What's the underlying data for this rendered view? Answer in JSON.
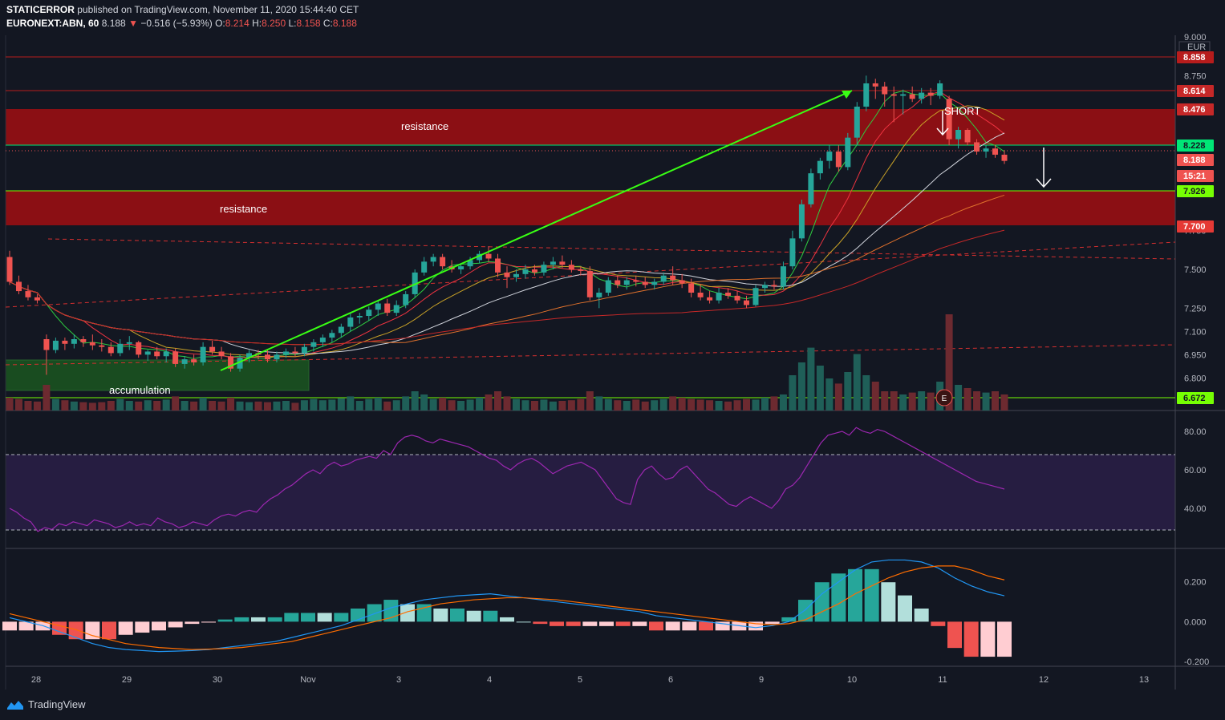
{
  "header": {
    "author": "STATICERROR",
    "published": "published on TradingView.com, November 11, 2020 15:44:40 CET",
    "symbol": "EURONEXT:ABN, 60",
    "last": "8.188",
    "change": "−0.516 (−5.93%)",
    "o_label": "O:",
    "o": "8.214",
    "h_label": "H:",
    "h": "8.250",
    "l_label": "L:",
    "l": "8.158",
    "c_label": "C:",
    "c": "8.188"
  },
  "footer": {
    "brand": "TradingView"
  },
  "colors": {
    "up": "#26a69a",
    "down": "#ef5350",
    "zone": "#8b0f14",
    "accum": "#1b5e20",
    "rsi_band": "#2a1e46"
  },
  "chart_data": [
    {
      "type": "candlestick",
      "pane": "price",
      "currency": "EUR",
      "y_ticks": [
        "9.000",
        "8.750",
        "7.750",
        "7.500",
        "7.250",
        "7.100",
        "6.950",
        "6.800"
      ],
      "x_ticks": [
        "28",
        "29",
        "30",
        "Nov",
        "3",
        "4",
        "5",
        "6",
        "9",
        "10",
        "11",
        "12",
        "13"
      ],
      "ylim": [
        6.6,
        9.0
      ],
      "ohlc": [
        [
          7.58,
          7.62,
          7.4,
          7.42
        ],
        [
          7.42,
          7.46,
          7.34,
          7.36
        ],
        [
          7.36,
          7.4,
          7.3,
          7.32
        ],
        [
          7.32,
          7.34,
          7.28,
          7.3
        ],
        [
          7.05,
          7.08,
          6.82,
          6.98
        ],
        [
          6.98,
          7.06,
          6.96,
          7.04
        ],
        [
          7.04,
          7.06,
          6.98,
          7.02
        ],
        [
          7.02,
          7.08,
          6.99,
          7.05
        ],
        [
          7.05,
          7.07,
          7.0,
          7.03
        ],
        [
          7.03,
          7.08,
          6.98,
          7.01
        ],
        [
          7.01,
          7.05,
          6.97,
          7.0
        ],
        [
          7.0,
          7.03,
          6.94,
          6.96
        ],
        [
          6.96,
          7.05,
          6.94,
          7.02
        ],
        [
          7.02,
          7.07,
          6.98,
          7.03
        ],
        [
          7.03,
          7.04,
          6.93,
          6.95
        ],
        [
          6.95,
          6.98,
          6.91,
          6.97
        ],
        [
          6.97,
          7.0,
          6.92,
          6.94
        ],
        [
          6.94,
          6.99,
          6.9,
          6.97
        ],
        [
          6.97,
          6.99,
          6.87,
          6.89
        ],
        [
          6.89,
          6.94,
          6.86,
          6.92
        ],
        [
          6.92,
          6.95,
          6.88,
          6.9
        ],
        [
          6.9,
          7.03,
          6.88,
          7.0
        ],
        [
          7.0,
          7.04,
          6.95,
          6.97
        ],
        [
          6.97,
          7.0,
          6.92,
          6.94
        ],
        [
          6.94,
          6.96,
          6.84,
          6.86
        ],
        [
          6.86,
          6.95,
          6.84,
          6.93
        ],
        [
          6.93,
          6.98,
          6.9,
          6.96
        ],
        [
          6.96,
          6.98,
          6.92,
          6.95
        ],
        [
          6.95,
          6.98,
          6.9,
          6.92
        ],
        [
          6.92,
          6.97,
          6.9,
          6.95
        ],
        [
          6.95,
          6.99,
          6.93,
          6.97
        ],
        [
          6.97,
          7.0,
          6.94,
          6.96
        ],
        [
          6.96,
          7.02,
          6.94,
          7.0
        ],
        [
          7.0,
          7.05,
          6.97,
          7.03
        ],
        [
          7.03,
          7.08,
          7.0,
          7.06
        ],
        [
          7.06,
          7.11,
          7.03,
          7.09
        ],
        [
          7.09,
          7.15,
          7.06,
          7.13
        ],
        [
          7.13,
          7.22,
          7.1,
          7.19
        ],
        [
          7.19,
          7.22,
          7.15,
          7.2
        ],
        [
          7.2,
          7.26,
          7.17,
          7.24
        ],
        [
          7.24,
          7.3,
          7.2,
          7.28
        ],
        [
          7.28,
          7.31,
          7.2,
          7.22
        ],
        [
          7.22,
          7.3,
          7.2,
          7.27
        ],
        [
          7.27,
          7.36,
          7.25,
          7.34
        ],
        [
          7.34,
          7.5,
          7.32,
          7.48
        ],
        [
          7.48,
          7.58,
          7.46,
          7.55
        ],
        [
          7.55,
          7.6,
          7.52,
          7.58
        ],
        [
          7.58,
          7.6,
          7.5,
          7.52
        ],
        [
          7.52,
          7.56,
          7.48,
          7.5
        ],
        [
          7.5,
          7.54,
          7.47,
          7.52
        ],
        [
          7.52,
          7.58,
          7.5,
          7.56
        ],
        [
          7.56,
          7.62,
          7.54,
          7.6
        ],
        [
          7.6,
          7.65,
          7.55,
          7.57
        ],
        [
          7.57,
          7.6,
          7.45,
          7.48
        ],
        [
          7.48,
          7.52,
          7.38,
          7.45
        ],
        [
          7.45,
          7.5,
          7.42,
          7.47
        ],
        [
          7.47,
          7.53,
          7.44,
          7.5
        ],
        [
          7.5,
          7.53,
          7.46,
          7.48
        ],
        [
          7.48,
          7.55,
          7.46,
          7.53
        ],
        [
          7.53,
          7.58,
          7.5,
          7.55
        ],
        [
          7.55,
          7.59,
          7.51,
          7.53
        ],
        [
          7.53,
          7.56,
          7.48,
          7.5
        ],
        [
          7.5,
          7.52,
          7.46,
          7.49
        ],
        [
          7.49,
          7.52,
          7.3,
          7.32
        ],
        [
          7.32,
          7.38,
          7.25,
          7.35
        ],
        [
          7.35,
          7.45,
          7.33,
          7.43
        ],
        [
          7.43,
          7.46,
          7.38,
          7.4
        ],
        [
          7.4,
          7.45,
          7.37,
          7.43
        ],
        [
          7.43,
          7.46,
          7.39,
          7.42
        ],
        [
          7.42,
          7.45,
          7.38,
          7.4
        ],
        [
          7.4,
          7.44,
          7.37,
          7.42
        ],
        [
          7.42,
          7.48,
          7.4,
          7.46
        ],
        [
          7.46,
          7.52,
          7.4,
          7.43
        ],
        [
          7.43,
          7.47,
          7.38,
          7.41
        ],
        [
          7.41,
          7.44,
          7.32,
          7.35
        ],
        [
          7.35,
          7.4,
          7.3,
          7.32
        ],
        [
          7.32,
          7.36,
          7.28,
          7.3
        ],
        [
          7.3,
          7.38,
          7.28,
          7.35
        ],
        [
          7.35,
          7.38,
          7.31,
          7.33
        ],
        [
          7.33,
          7.36,
          7.28,
          7.3
        ],
        [
          7.3,
          7.33,
          7.25,
          7.27
        ],
        [
          7.27,
          7.4,
          7.26,
          7.38
        ],
        [
          7.38,
          7.42,
          7.35,
          7.4
        ],
        [
          7.4,
          7.43,
          7.37,
          7.39
        ],
        [
          7.39,
          7.55,
          7.37,
          7.52
        ],
        [
          7.52,
          7.75,
          7.5,
          7.7
        ],
        [
          7.7,
          7.95,
          7.68,
          7.92
        ],
        [
          7.92,
          8.15,
          7.9,
          8.12
        ],
        [
          8.12,
          8.22,
          8.08,
          8.2
        ],
        [
          8.2,
          8.3,
          8.15,
          8.26
        ],
        [
          8.26,
          8.3,
          8.13,
          8.16
        ],
        [
          8.16,
          8.38,
          8.14,
          8.35
        ],
        [
          8.35,
          8.58,
          8.3,
          8.55
        ],
        [
          8.55,
          8.75,
          8.52,
          8.7
        ],
        [
          8.7,
          8.73,
          8.6,
          8.68
        ],
        [
          8.68,
          8.71,
          8.55,
          8.63
        ],
        [
          8.63,
          8.68,
          8.45,
          8.62
        ],
        [
          8.62,
          8.66,
          8.5,
          8.63
        ],
        [
          8.63,
          8.68,
          8.58,
          8.6
        ],
        [
          8.6,
          8.67,
          8.57,
          8.64
        ],
        [
          8.64,
          8.67,
          8.56,
          8.62
        ],
        [
          8.62,
          8.72,
          8.6,
          8.7
        ],
        [
          8.6,
          8.62,
          8.3,
          8.34
        ],
        [
          8.34,
          8.42,
          8.28,
          8.4
        ],
        [
          8.4,
          8.41,
          8.3,
          8.32
        ],
        [
          8.32,
          8.34,
          8.24,
          8.26
        ],
        [
          8.26,
          8.3,
          8.22,
          8.28
        ],
        [
          8.28,
          8.3,
          8.22,
          8.24
        ],
        [
          8.24,
          8.27,
          8.18,
          8.2
        ]
      ],
      "volume": [
        20,
        18,
        15,
        14,
        40,
        18,
        16,
        14,
        13,
        12,
        13,
        15,
        18,
        15,
        14,
        16,
        15,
        17,
        22,
        15,
        14,
        20,
        15,
        14,
        20,
        14,
        13,
        14,
        13,
        14,
        15,
        12,
        16,
        18,
        16,
        17,
        19,
        22,
        15,
        18,
        20,
        14,
        16,
        22,
        30,
        25,
        18,
        20,
        16,
        15,
        17,
        20,
        25,
        30,
        22,
        18,
        16,
        15,
        17,
        14,
        15,
        16,
        18,
        30,
        22,
        18,
        16,
        15,
        17,
        14,
        16,
        18,
        22,
        20,
        18,
        17,
        16,
        15,
        14,
        16,
        18,
        17,
        20,
        22,
        25,
        55,
        75,
        98,
        70,
        50,
        42,
        60,
        88,
        55,
        45,
        30,
        30,
        25,
        28,
        30,
        28,
        45,
        150,
        40,
        35,
        30,
        28,
        30,
        25
      ],
      "levels": [
        "8.858",
        "8.750",
        "8.614",
        "8.476",
        "8.228",
        "8.188",
        "15:21",
        "7.926",
        "7.750",
        "7.700",
        "6.672"
      ],
      "annotations": [
        "resistance",
        "resistance",
        "accumulation",
        "SHORT",
        "E"
      ]
    },
    {
      "type": "line",
      "pane": "rsi",
      "y_ticks": [
        "80.00",
        "60.00",
        "40.00"
      ],
      "ylim": [
        20,
        90
      ],
      "bands": [
        30,
        70
      ],
      "values": [
        40,
        38,
        35,
        33,
        28,
        30,
        29,
        32,
        31,
        33,
        32,
        31,
        34,
        33,
        32,
        30,
        31,
        33,
        31,
        32,
        31,
        35,
        33,
        32,
        30,
        31,
        33,
        32,
        31,
        34,
        36,
        37,
        36,
        38,
        39,
        38,
        42,
        45,
        47,
        50,
        52,
        55,
        58,
        60,
        58,
        62,
        64,
        62,
        63,
        65,
        66,
        67,
        66,
        70,
        68,
        74,
        77,
        78,
        77,
        75,
        74,
        76,
        75,
        74,
        73,
        72,
        70,
        68,
        66,
        65,
        62,
        60,
        63,
        65,
        66,
        64,
        61,
        58,
        60,
        62,
        63,
        64,
        62,
        60,
        55,
        50,
        45,
        43,
        42,
        55,
        60,
        62,
        58,
        55,
        56,
        60,
        62,
        58,
        54,
        50,
        48,
        45,
        42,
        41,
        44,
        46,
        44,
        42,
        40,
        44,
        50,
        52,
        56,
        62,
        68,
        74,
        78,
        79,
        80,
        78,
        82,
        80,
        79,
        81,
        80,
        78,
        76,
        74,
        72,
        70,
        68,
        66,
        64,
        62,
        60,
        58,
        56,
        54,
        53,
        52,
        51,
        50
      ]
    },
    {
      "type": "line",
      "pane": "macd",
      "y_ticks": [
        "0.200",
        "0.000",
        "-0.200"
      ],
      "ylim": [
        -0.22,
        0.36
      ],
      "macd": [
        0.02,
        0.0,
        -0.02,
        -0.05,
        -0.08,
        -0.11,
        -0.13,
        -0.14,
        -0.145,
        -0.15,
        -0.148,
        -0.145,
        -0.14,
        -0.13,
        -0.12,
        -0.11,
        -0.1,
        -0.08,
        -0.06,
        -0.04,
        -0.02,
        0.01,
        0.04,
        0.07,
        0.09,
        0.11,
        0.12,
        0.13,
        0.135,
        0.14,
        0.13,
        0.12,
        0.11,
        0.1,
        0.09,
        0.08,
        0.07,
        0.06,
        0.05,
        0.03,
        0.02,
        0.01,
        0.0,
        -0.01,
        -0.02,
        -0.03,
        -0.02,
        0.0,
        0.06,
        0.14,
        0.2,
        0.26,
        0.3,
        0.31,
        0.31,
        0.3,
        0.27,
        0.22,
        0.18,
        0.15,
        0.13
      ],
      "signal": [
        0.04,
        0.02,
        0.0,
        -0.02,
        -0.04,
        -0.07,
        -0.09,
        -0.11,
        -0.12,
        -0.13,
        -0.135,
        -0.14,
        -0.138,
        -0.135,
        -0.13,
        -0.12,
        -0.11,
        -0.1,
        -0.08,
        -0.06,
        -0.04,
        -0.02,
        0.0,
        0.02,
        0.05,
        0.07,
        0.09,
        0.1,
        0.11,
        0.115,
        0.12,
        0.12,
        0.115,
        0.11,
        0.1,
        0.09,
        0.08,
        0.07,
        0.06,
        0.05,
        0.04,
        0.03,
        0.02,
        0.01,
        0.0,
        -0.01,
        -0.015,
        -0.01,
        0.01,
        0.05,
        0.09,
        0.14,
        0.18,
        0.22,
        0.25,
        0.27,
        0.28,
        0.28,
        0.26,
        0.23,
        0.21
      ]
    }
  ]
}
